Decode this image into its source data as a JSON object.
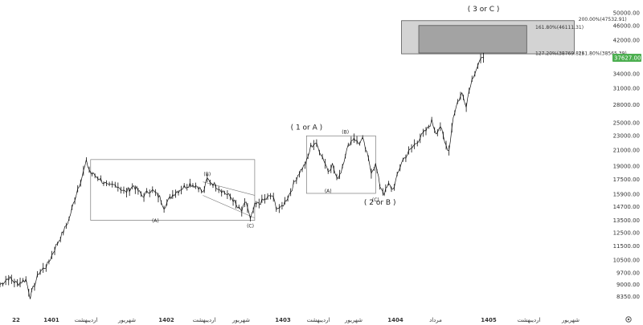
{
  "chart_data": {
    "type": "line",
    "y_scale": "log",
    "ylim": [
      8000,
      52000
    ],
    "y_ticks": [
      "50000.00",
      "46000.00",
      "42000.00",
      "38000.00",
      "34000.00",
      "31000.00",
      "28000.00",
      "25000.00",
      "23000.00",
      "21000.00",
      "19000.00",
      "17500.00",
      "15900.00",
      "14700.00",
      "13500.00",
      "12500.00",
      "11500.00",
      "10500.00",
      "9700.00",
      "9000.00",
      "8350.00"
    ],
    "x_ticks": [
      "22",
      "1401",
      "اردیبهشت",
      "شهریور",
      "1402",
      "اردیبهشت",
      "شهریور",
      "1403",
      "اردیبهشت",
      "شهریور",
      "1404",
      "مرداد",
      "1405",
      "اردیبهشت",
      "شهریور"
    ],
    "last_price": "37627.00",
    "price_path": [
      [
        0,
        9000
      ],
      [
        2,
        9400
      ],
      [
        4,
        9050
      ],
      [
        6,
        9300
      ],
      [
        7,
        8350
      ],
      [
        9,
        9700
      ],
      [
        11,
        10200
      ],
      [
        13,
        11500
      ],
      [
        15,
        12800
      ],
      [
        16,
        13600
      ],
      [
        18,
        16500
      ],
      [
        19,
        17800
      ],
      [
        20,
        19500
      ],
      [
        21,
        18200
      ],
      [
        23,
        17600
      ],
      [
        25,
        16700
      ],
      [
        27,
        16900
      ],
      [
        29,
        16100
      ],
      [
        31,
        16800
      ],
      [
        33,
        15700
      ],
      [
        35,
        16400
      ],
      [
        37,
        15600
      ],
      [
        38,
        14700
      ],
      [
        40,
        15900
      ],
      [
        42,
        16500
      ],
      [
        44,
        17000
      ],
      [
        46,
        16700
      ],
      [
        47,
        16000
      ],
      [
        48,
        17500
      ],
      [
        50,
        16800
      ],
      [
        52,
        16100
      ],
      [
        54,
        15400
      ],
      [
        55,
        14600
      ],
      [
        56,
        14300
      ],
      [
        57,
        15200
      ],
      [
        58,
        13500
      ],
      [
        59,
        14800
      ],
      [
        61,
        15300
      ],
      [
        63,
        15800
      ],
      [
        64,
        14700
      ],
      [
        65,
        14500
      ],
      [
        67,
        15900
      ],
      [
        69,
        18000
      ],
      [
        71,
        19500
      ],
      [
        72,
        21500
      ],
      [
        73,
        22000
      ],
      [
        74,
        21000
      ],
      [
        75,
        19800
      ],
      [
        76,
        18500
      ],
      [
        77,
        19200
      ],
      [
        78,
        17500
      ],
      [
        79,
        18400
      ],
      [
        80,
        20500
      ],
      [
        81,
        22000
      ],
      [
        82,
        22800
      ],
      [
        83,
        21900
      ],
      [
        84,
        22500
      ],
      [
        85,
        20500
      ],
      [
        86,
        18400
      ],
      [
        87,
        19200
      ],
      [
        88,
        16800
      ],
      [
        89,
        16000
      ],
      [
        90,
        16900
      ],
      [
        91,
        16400
      ],
      [
        92,
        17800
      ],
      [
        93,
        19500
      ],
      [
        95,
        21000
      ],
      [
        97,
        22500
      ],
      [
        99,
        24000
      ],
      [
        100,
        25200
      ],
      [
        101,
        23500
      ],
      [
        102,
        24500
      ],
      [
        103,
        22000
      ],
      [
        104,
        21000
      ],
      [
        105,
        26000
      ],
      [
        106,
        28500
      ],
      [
        107,
        30000
      ],
      [
        108,
        28000
      ],
      [
        109,
        32000
      ],
      [
        110,
        34500
      ],
      [
        111,
        36500
      ],
      [
        112,
        37627
      ]
    ],
    "boxes": [
      {
        "x": [
          21,
          59
        ],
        "y": [
          13500,
          19800
        ]
      },
      {
        "x": [
          71,
          87
        ],
        "y": [
          16000,
          23000
        ]
      }
    ],
    "trendlines": [
      {
        "x": [
          47,
          59
        ],
        "y": [
          17200,
          15800
        ]
      },
      {
        "x": [
          47,
          59
        ],
        "y": [
          15800,
          13700
        ]
      }
    ],
    "fib_zone": {
      "x": [
        93,
        133
      ],
      "outer_y": [
        38565.39,
        47532.91
      ],
      "inner_x": [
        97,
        122
      ],
      "inner_y": [
        38769.82,
        46111.31
      ]
    },
    "wave_labels": [
      {
        "text": "(B)",
        "x": 48,
        "y": 17900,
        "size": "small"
      },
      {
        "text": "(A)",
        "x": 36,
        "y": 13350,
        "size": "small"
      },
      {
        "text": "(C)",
        "x": 58,
        "y": 12900,
        "size": "small"
      },
      {
        "text": "(B)",
        "x": 80,
        "y": 23300,
        "size": "small"
      },
      {
        "text": "(A)",
        "x": 76,
        "y": 16100,
        "size": "small"
      },
      {
        "text": "(C)",
        "x": 87,
        "y": 15200,
        "size": "small"
      },
      {
        "text": "( 1 or A )",
        "x": 71,
        "y": 23900,
        "size": "big"
      },
      {
        "text": "( 2 or B )",
        "x": 88,
        "y": 14900,
        "size": "big"
      },
      {
        "text": "( 3 or C )",
        "x": 112,
        "y": 50500,
        "size": "big"
      }
    ],
    "fib_labels": [
      {
        "text": "200.00%(47532.91)",
        "x": 134,
        "y": 47900
      },
      {
        "text": "161.80%(46111.31)",
        "x": 124,
        "y": 45600
      },
      {
        "text": "127.20%(38769.82)",
        "x": 124,
        "y": 38650
      },
      {
        "text": "161.80%(38565.39)",
        "x": 134,
        "y": 38650
      }
    ]
  }
}
